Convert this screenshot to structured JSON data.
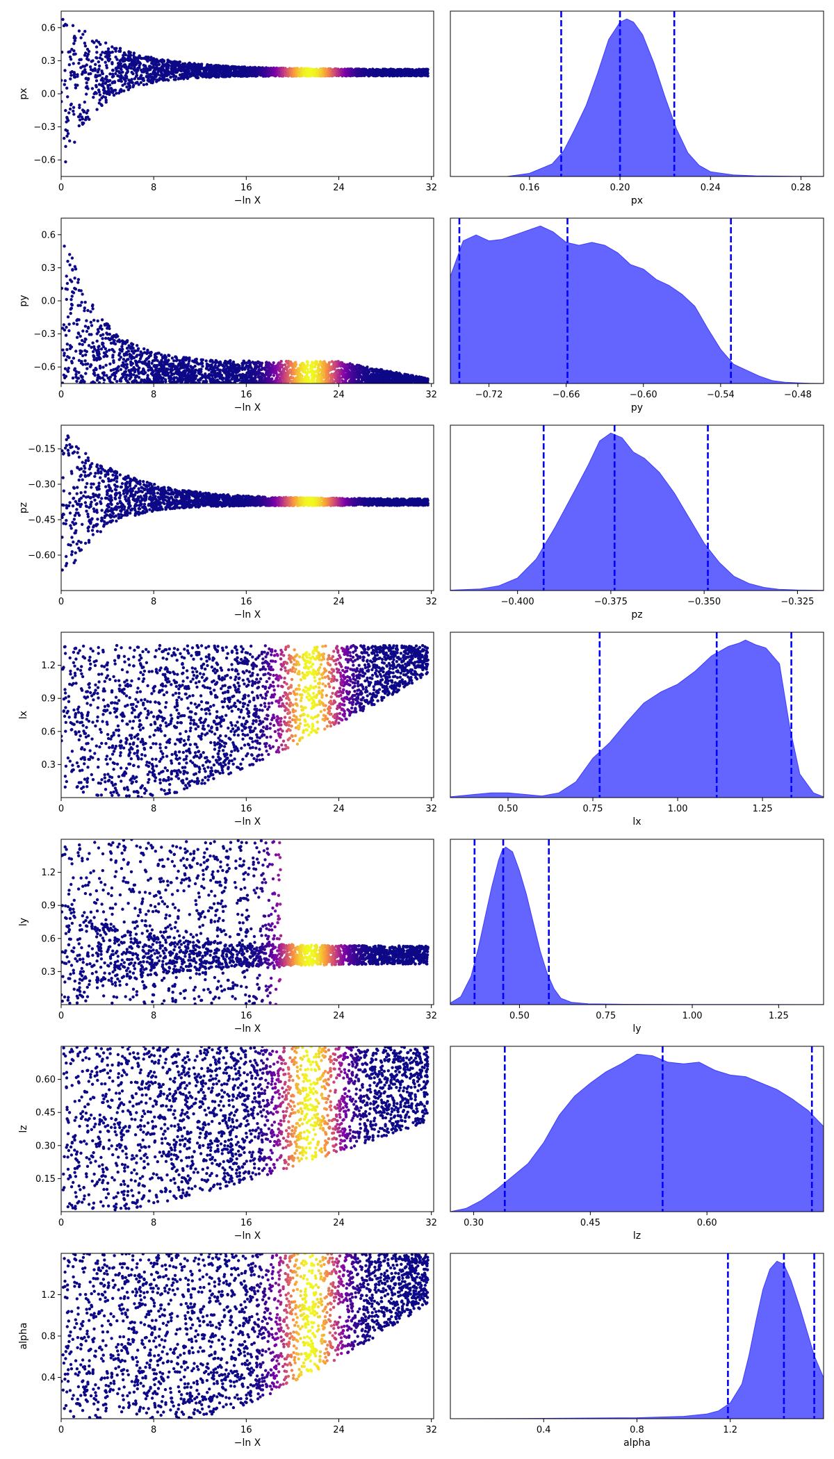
{
  "colors": {
    "trace_low": "#0d0887",
    "trace_high": "#f0f921",
    "posterior_fill": "#6464ff",
    "posterior_edge": "#3c3cff",
    "quantile_line": "#0000ff"
  },
  "colormap": "plasma",
  "chart_data": [
    {
      "type": "scatter",
      "panel": "trace",
      "param": "px",
      "xlabel": "−ln X",
      "ylabel": "px",
      "xlim": [
        0,
        32.2
      ],
      "ylim": [
        -0.75,
        0.75
      ],
      "xticks": [
        0,
        8,
        16,
        24,
        32
      ],
      "xtick_labels": [
        "0",
        "8",
        "16",
        "24",
        "32"
      ],
      "yticks": [
        -0.6,
        -0.3,
        0.0,
        0.3,
        0.6
      ],
      "ytick_labels": [
        "−0.6",
        "−0.3",
        "0.0",
        "0.3",
        "0.6"
      ],
      "shape": "converge",
      "converge_value": 0.2,
      "spread_upper": 0.75,
      "spread_lower": -0.75,
      "convergence_decay": 5,
      "weight_peak": 21.5,
      "weight_width": 2.5
    },
    {
      "type": "area",
      "panel": "posterior",
      "param": "px",
      "xlabel": "px",
      "xlim": [
        0.125,
        0.29
      ],
      "xticks": [
        0.16,
        0.2,
        0.24,
        0.28
      ],
      "xtick_labels": [
        "0.16",
        "0.20",
        "0.24",
        "0.28"
      ],
      "density": {
        "x": [
          0.15,
          0.16,
          0.17,
          0.175,
          0.18,
          0.185,
          0.19,
          0.195,
          0.2,
          0.203,
          0.206,
          0.21,
          0.215,
          0.22,
          0.225,
          0.23,
          0.235,
          0.24,
          0.25,
          0.26,
          0.27,
          0.28,
          0.29
        ],
        "y": [
          0,
          0.02,
          0.08,
          0.16,
          0.3,
          0.45,
          0.65,
          0.87,
          0.98,
          1.0,
          0.98,
          0.9,
          0.72,
          0.5,
          0.3,
          0.15,
          0.07,
          0.03,
          0.01,
          0.004,
          0.002,
          0.001,
          0.0005
        ]
      },
      "quantiles": [
        0.174,
        0.2,
        0.224
      ]
    },
    {
      "type": "scatter",
      "panel": "trace",
      "param": "py",
      "xlabel": "−ln X",
      "ylabel": "py",
      "xlim": [
        0,
        32.2
      ],
      "ylim": [
        -0.75,
        0.75
      ],
      "xticks": [
        0,
        8,
        16,
        24,
        32
      ],
      "xtick_labels": [
        "0",
        "8",
        "16",
        "24",
        "32"
      ],
      "yticks": [
        -0.6,
        -0.3,
        0.0,
        0.3,
        0.6
      ],
      "ytick_labels": [
        "−0.6",
        "−0.3",
        "0.0",
        "0.3",
        "0.6"
      ],
      "shape": "floor",
      "floor_value": -0.75,
      "band_top_start": 0.75,
      "band_top_end": -0.55,
      "band_decay": 3,
      "tail_end": 32,
      "weight_peak": 21.5,
      "weight_width": 2.5
    },
    {
      "type": "area",
      "panel": "posterior",
      "param": "py",
      "xlabel": "py",
      "xlim": [
        -0.75,
        -0.46
      ],
      "xticks": [
        -0.72,
        -0.66,
        -0.6,
        -0.54,
        -0.48
      ],
      "xtick_labels": [
        "−0.72",
        "−0.66",
        "−0.60",
        "−0.54",
        "−0.48"
      ],
      "density": {
        "x": [
          -0.75,
          -0.74,
          -0.73,
          -0.72,
          -0.71,
          -0.7,
          -0.69,
          -0.68,
          -0.67,
          -0.66,
          -0.65,
          -0.64,
          -0.63,
          -0.62,
          -0.61,
          -0.6,
          -0.59,
          -0.58,
          -0.57,
          -0.56,
          -0.55,
          -0.54,
          -0.53,
          -0.52,
          -0.51,
          -0.5,
          -0.49,
          -0.48,
          -0.47,
          -0.46
        ],
        "y": [
          0.72,
          0.96,
          1.0,
          0.96,
          0.97,
          1.0,
          1.03,
          1.06,
          1.02,
          0.95,
          0.93,
          0.95,
          0.93,
          0.88,
          0.8,
          0.77,
          0.7,
          0.66,
          0.6,
          0.52,
          0.37,
          0.23,
          0.13,
          0.09,
          0.05,
          0.02,
          0.008,
          0.004,
          0.0015,
          0.0005
        ]
      },
      "quantiles": [
        -0.743,
        -0.659,
        -0.532
      ]
    },
    {
      "type": "scatter",
      "panel": "trace",
      "param": "pz",
      "xlabel": "−ln X",
      "ylabel": "pz",
      "xlim": [
        0,
        32.2
      ],
      "ylim": [
        -0.75,
        -0.05
      ],
      "xticks": [
        0,
        8,
        16,
        24,
        32
      ],
      "xtick_labels": [
        "0",
        "8",
        "16",
        "24",
        "32"
      ],
      "yticks": [
        -0.6,
        -0.45,
        -0.3,
        -0.15
      ],
      "ytick_labels": [
        "−0.60",
        "−0.45",
        "−0.30",
        "−0.15"
      ],
      "shape": "converge",
      "converge_value": -0.375,
      "spread_upper": -0.05,
      "spread_lower": -0.75,
      "convergence_decay": 5,
      "weight_peak": 21.5,
      "weight_width": 2.5
    },
    {
      "type": "area",
      "panel": "posterior",
      "param": "pz",
      "xlabel": "pz",
      "xlim": [
        -0.418,
        -0.318
      ],
      "xticks": [
        -0.4,
        -0.375,
        -0.35,
        -0.325
      ],
      "xtick_labels": [
        "−0.400",
        "−0.375",
        "−0.350",
        "−0.325"
      ],
      "density": {
        "x": [
          -0.418,
          -0.41,
          -0.405,
          -0.4,
          -0.395,
          -0.39,
          -0.385,
          -0.381,
          -0.378,
          -0.375,
          -0.372,
          -0.369,
          -0.366,
          -0.362,
          -0.358,
          -0.354,
          -0.35,
          -0.346,
          -0.342,
          -0.338,
          -0.334,
          -0.33,
          -0.325,
          -0.318
        ],
        "y": [
          0.002,
          0.01,
          0.03,
          0.08,
          0.2,
          0.4,
          0.62,
          0.8,
          0.95,
          1.0,
          0.97,
          0.88,
          0.84,
          0.75,
          0.62,
          0.46,
          0.3,
          0.18,
          0.09,
          0.045,
          0.02,
          0.008,
          0.003,
          0.001
        ]
      },
      "quantiles": [
        -0.393,
        -0.374,
        -0.349
      ]
    },
    {
      "type": "scatter",
      "panel": "trace",
      "param": "lx",
      "xlabel": "−ln X",
      "ylabel": "lx",
      "xlim": [
        0,
        32.2
      ],
      "ylim": [
        0.0,
        1.5
      ],
      "xticks": [
        0,
        8,
        16,
        24,
        32
      ],
      "xtick_labels": [
        "0",
        "8",
        "16",
        "24",
        "32"
      ],
      "yticks": [
        0.3,
        0.6,
        0.9,
        1.2
      ],
      "ytick_labels": [
        "0.3",
        "0.6",
        "0.9",
        "1.2"
      ],
      "shape": "rise",
      "top": 1.5,
      "lower_start": 0.0,
      "lower_end": 1.15,
      "rise_start": 8,
      "cap": 1.38,
      "weight_peak": 21.5,
      "weight_width": 2.5
    },
    {
      "type": "area",
      "panel": "posterior",
      "param": "lx",
      "xlabel": "lx",
      "xlim": [
        0.33,
        1.43
      ],
      "xticks": [
        0.5,
        0.75,
        1.0,
        1.25
      ],
      "xtick_labels": [
        "0.50",
        "0.75",
        "1.00",
        "1.25"
      ],
      "density": {
        "x": [
          0.33,
          0.4,
          0.45,
          0.5,
          0.55,
          0.6,
          0.65,
          0.7,
          0.75,
          0.8,
          0.85,
          0.9,
          0.95,
          1.0,
          1.05,
          1.1,
          1.15,
          1.18,
          1.2,
          1.23,
          1.26,
          1.3,
          1.33,
          1.36,
          1.4,
          1.43
        ],
        "y": [
          0.005,
          0.02,
          0.03,
          0.03,
          0.02,
          0.01,
          0.03,
          0.1,
          0.25,
          0.35,
          0.48,
          0.6,
          0.67,
          0.72,
          0.8,
          0.9,
          0.96,
          0.98,
          1.0,
          0.97,
          0.95,
          0.85,
          0.45,
          0.15,
          0.03,
          0.005
        ]
      },
      "quantiles": [
        0.77,
        1.115,
        1.335
      ]
    },
    {
      "type": "scatter",
      "panel": "trace",
      "param": "ly",
      "xlabel": "−ln X",
      "ylabel": "ly",
      "xlim": [
        0,
        32.2
      ],
      "ylim": [
        0.0,
        1.5
      ],
      "xticks": [
        0,
        8,
        16,
        24,
        32
      ],
      "xtick_labels": [
        "0",
        "8",
        "16",
        "24",
        "32"
      ],
      "yticks": [
        0.3,
        0.6,
        0.9,
        1.2
      ],
      "ytick_labels": [
        "0.3",
        "0.6",
        "0.9",
        "1.2"
      ],
      "shape": "branch",
      "band_center": 0.45,
      "band_halfwidth": 0.08,
      "upper_top": 1.5,
      "cutoff": 19,
      "weight_peak": 21.5,
      "weight_width": 2.5
    },
    {
      "type": "area",
      "panel": "posterior",
      "param": "ly",
      "xlabel": "ly",
      "xlim": [
        0.3,
        1.38
      ],
      "xticks": [
        0.5,
        0.75,
        1.0,
        1.25
      ],
      "xtick_labels": [
        "0.50",
        "0.75",
        "1.00",
        "1.25"
      ],
      "density": {
        "x": [
          0.3,
          0.33,
          0.36,
          0.38,
          0.4,
          0.42,
          0.44,
          0.45,
          0.46,
          0.48,
          0.5,
          0.52,
          0.54,
          0.56,
          0.58,
          0.6,
          0.62,
          0.65,
          0.7,
          0.8,
          1.0,
          1.2,
          1.38
        ],
        "y": [
          0.01,
          0.05,
          0.18,
          0.35,
          0.55,
          0.75,
          0.92,
          0.98,
          1.0,
          0.97,
          0.85,
          0.7,
          0.52,
          0.34,
          0.2,
          0.1,
          0.04,
          0.015,
          0.005,
          0.002,
          0.001,
          0.001,
          0.0005
        ]
      },
      "quantiles": [
        0.37,
        0.453,
        0.585
      ]
    },
    {
      "type": "scatter",
      "panel": "trace",
      "param": "lz",
      "xlabel": "−ln X",
      "ylabel": "lz",
      "xlim": [
        0,
        32.2
      ],
      "ylim": [
        0.0,
        0.75
      ],
      "xticks": [
        0,
        8,
        16,
        24,
        32
      ],
      "xtick_labels": [
        "0",
        "8",
        "16",
        "24",
        "32"
      ],
      "yticks": [
        0.15,
        0.3,
        0.45,
        0.6
      ],
      "ytick_labels": [
        "0.15",
        "0.30",
        "0.45",
        "0.60"
      ],
      "shape": "rise",
      "top": 0.75,
      "lower_start": 0.0,
      "lower_end": 0.42,
      "rise_start": 4,
      "cap": 0.75,
      "weight_peak": 21.5,
      "weight_width": 2.5
    },
    {
      "type": "area",
      "panel": "posterior",
      "param": "lz",
      "xlabel": "lz",
      "xlim": [
        0.27,
        0.75
      ],
      "xticks": [
        0.3,
        0.45,
        0.6
      ],
      "xtick_labels": [
        "0.30",
        "0.45",
        "0.60"
      ],
      "density": {
        "x": [
          0.27,
          0.29,
          0.31,
          0.33,
          0.35,
          0.37,
          0.39,
          0.41,
          0.43,
          0.45,
          0.47,
          0.49,
          0.51,
          0.53,
          0.55,
          0.57,
          0.59,
          0.61,
          0.63,
          0.65,
          0.67,
          0.69,
          0.71,
          0.73,
          0.75
        ],
        "y": [
          0.0,
          0.02,
          0.07,
          0.14,
          0.22,
          0.3,
          0.43,
          0.6,
          0.72,
          0.8,
          0.87,
          0.92,
          0.98,
          0.97,
          0.93,
          0.92,
          0.93,
          0.88,
          0.85,
          0.84,
          0.8,
          0.76,
          0.7,
          0.63,
          0.53
        ]
      },
      "quantiles": [
        0.34,
        0.543,
        0.735
      ]
    },
    {
      "type": "scatter",
      "panel": "trace",
      "param": "alpha",
      "xlabel": "−ln X",
      "ylabel": "alpha",
      "xlim": [
        0,
        32.2
      ],
      "ylim": [
        0.0,
        1.6
      ],
      "xticks": [
        0,
        8,
        16,
        24,
        32
      ],
      "xtick_labels": [
        "0",
        "8",
        "16",
        "24",
        "32"
      ],
      "yticks": [
        0.4,
        0.8,
        1.2
      ],
      "ytick_labels": [
        "0.4",
        "0.8",
        "1.2"
      ],
      "shape": "rise_alpha",
      "top": 1.6,
      "lower_start": 0.0,
      "lower_end": 1.15,
      "rise_start": 12,
      "cap": 1.6,
      "weight_peak": 21.5,
      "weight_width": 2.5
    },
    {
      "type": "area",
      "panel": "posterior",
      "param": "alpha",
      "xlabel": "alpha",
      "xlim": [
        0.0,
        1.6
      ],
      "xticks": [
        0.4,
        0.8,
        1.2
      ],
      "xtick_labels": [
        "0.4",
        "0.8",
        "1.2"
      ],
      "density": {
        "x": [
          0.0,
          0.4,
          0.8,
          1.0,
          1.1,
          1.15,
          1.2,
          1.25,
          1.28,
          1.31,
          1.34,
          1.37,
          1.4,
          1.43,
          1.46,
          1.5,
          1.53,
          1.56,
          1.6
        ],
        "y": [
          0.0,
          0.002,
          0.006,
          0.015,
          0.03,
          0.05,
          0.1,
          0.22,
          0.4,
          0.62,
          0.82,
          0.95,
          1.0,
          0.98,
          0.88,
          0.7,
          0.55,
          0.4,
          0.26
        ]
      },
      "quantiles": [
        1.19,
        1.43,
        1.56
      ]
    }
  ]
}
